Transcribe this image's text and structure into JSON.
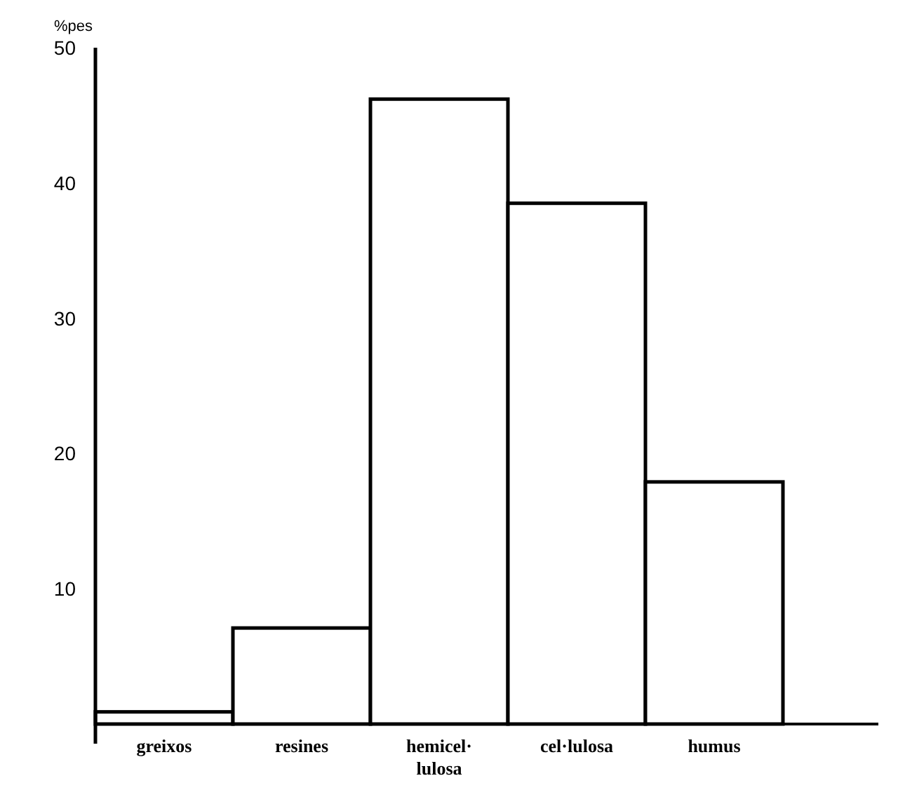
{
  "chart_data": {
    "type": "bar",
    "ylabel": "%pes",
    "categories": [
      "greixos",
      "resines",
      "hemicel·lulosa",
      "cel·lulosa",
      "humus"
    ],
    "values": [
      0.9,
      7.1,
      46.2,
      38.5,
      17.9
    ],
    "color": "#ffffff",
    "ylim": [
      0,
      50
    ],
    "yticks": [
      10,
      20,
      30,
      40,
      50
    ],
    "grid": false
  }
}
